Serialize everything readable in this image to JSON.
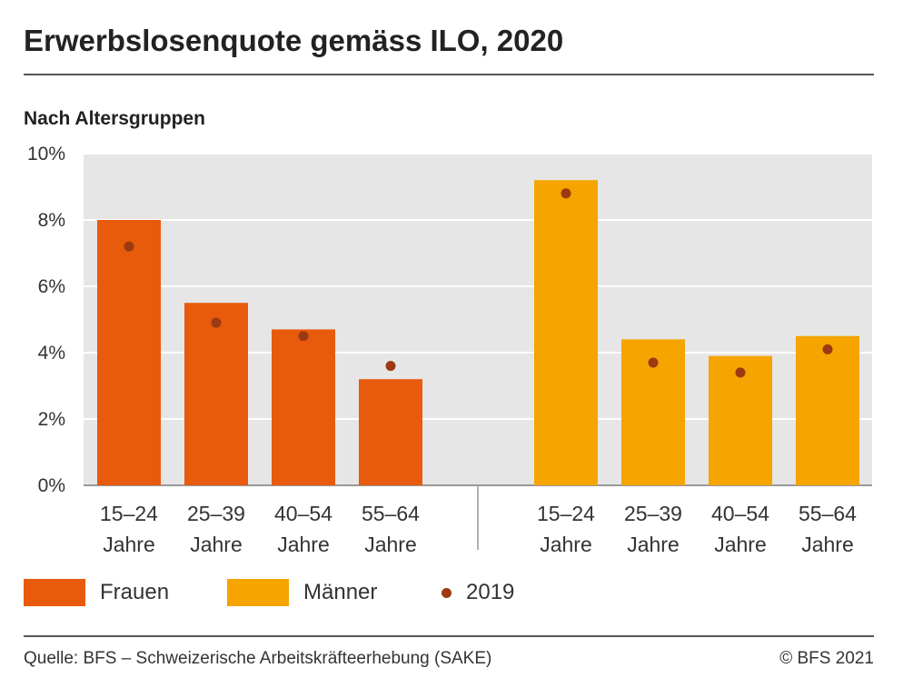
{
  "header": {
    "title": "Erwerbslosenquote gemäss ILO, 2020",
    "subtitle": "Nach Altersgruppen"
  },
  "legend": {
    "frauen": "Frauen",
    "maenner": "Männer",
    "prev_year": "2019"
  },
  "footer": {
    "source": "Quelle: BFS – Schweizerische Arbeitskräfteerhebung (SAKE)",
    "copyright": "© BFS 2021"
  },
  "colors": {
    "frauen": "#E85A0C",
    "maenner": "#F5A400",
    "dot": "#9B3A12",
    "plot_bg": "#E6E6E6",
    "grid": "#FFFFFF"
  },
  "chart_data": {
    "type": "bar",
    "title": "Erwerbslosenquote gemäss ILO, 2020",
    "subtitle": "Nach Altersgruppen",
    "ylim": [
      0,
      10
    ],
    "yticks": [
      "0%",
      "2%",
      "4%",
      "6%",
      "8%",
      "10%"
    ],
    "groups": [
      {
        "name": "Frauen",
        "categories": [
          [
            "15–24",
            "Jahre"
          ],
          [
            "25–39",
            "Jahre"
          ],
          [
            "40–54",
            "Jahre"
          ],
          [
            "55–64",
            "Jahre"
          ]
        ],
        "values_2020": [
          8.0,
          5.5,
          4.7,
          3.2
        ],
        "values_2019": [
          7.2,
          4.9,
          4.5,
          3.6
        ]
      },
      {
        "name": "Männer",
        "categories": [
          [
            "15–24",
            "Jahre"
          ],
          [
            "25–39",
            "Jahre"
          ],
          [
            "40–54",
            "Jahre"
          ],
          [
            "55–64",
            "Jahre"
          ]
        ],
        "values_2020": [
          9.2,
          4.4,
          3.9,
          4.5
        ],
        "values_2019": [
          8.8,
          3.7,
          3.4,
          4.1
        ]
      }
    ],
    "legend": [
      "Frauen",
      "Männer",
      "2019"
    ],
    "grid": true,
    "legend_position": "bottom"
  }
}
